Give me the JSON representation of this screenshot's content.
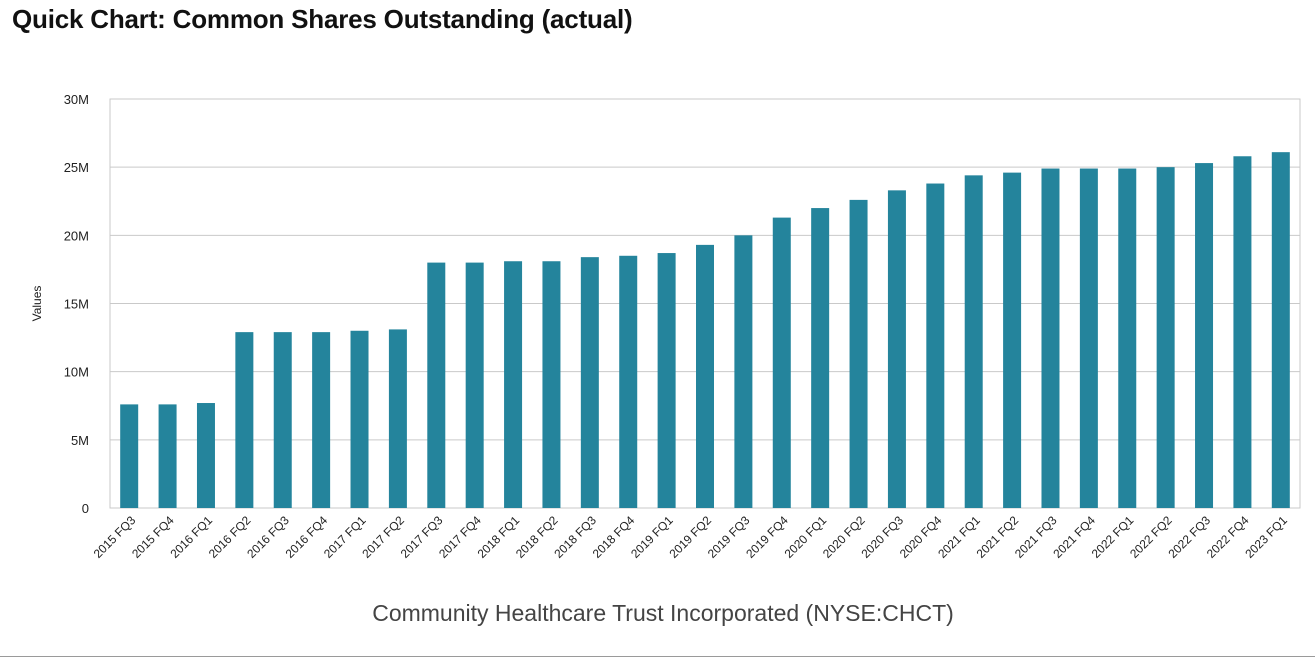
{
  "page": {
    "title": "Quick Chart: Common Shares Outstanding (actual)"
  },
  "chart_data": {
    "type": "bar",
    "title": "Quick Chart: Common Shares Outstanding (actual)",
    "xlabel": "Community Healthcare Trust Incorporated (NYSE:CHCT)",
    "ylabel": "Values",
    "ylim": [
      0,
      30000000
    ],
    "yticks": [
      0,
      5000000,
      10000000,
      15000000,
      20000000,
      25000000,
      30000000
    ],
    "ytick_labels": [
      "0",
      "5M",
      "10M",
      "15M",
      "20M",
      "25M",
      "30M"
    ],
    "grid": true,
    "legend": "none",
    "bar_color": "#24849c",
    "categories": [
      "2015 FQ3",
      "2015 FQ4",
      "2016 FQ1",
      "2016 FQ2",
      "2016 FQ3",
      "2016 FQ4",
      "2017 FQ1",
      "2017 FQ2",
      "2017 FQ3",
      "2017 FQ4",
      "2018 FQ1",
      "2018 FQ2",
      "2018 FQ3",
      "2018 FQ4",
      "2019 FQ1",
      "2019 FQ2",
      "2019 FQ3",
      "2019 FQ4",
      "2020 FQ1",
      "2020 FQ2",
      "2020 FQ3",
      "2020 FQ4",
      "2021 FQ1",
      "2021 FQ2",
      "2021 FQ3",
      "2021 FQ4",
      "2022 FQ1",
      "2022 FQ2",
      "2022 FQ3",
      "2022 FQ4",
      "2023 FQ1"
    ],
    "values": [
      7600000,
      7600000,
      7700000,
      12900000,
      12900000,
      12900000,
      13000000,
      13100000,
      18000000,
      18000000,
      18100000,
      18100000,
      18400000,
      18500000,
      18700000,
      19300000,
      20000000,
      21300000,
      22000000,
      22600000,
      23300000,
      23800000,
      24400000,
      24600000,
      24900000,
      24900000,
      24900000,
      25000000,
      25300000,
      25800000,
      26100000
    ]
  }
}
